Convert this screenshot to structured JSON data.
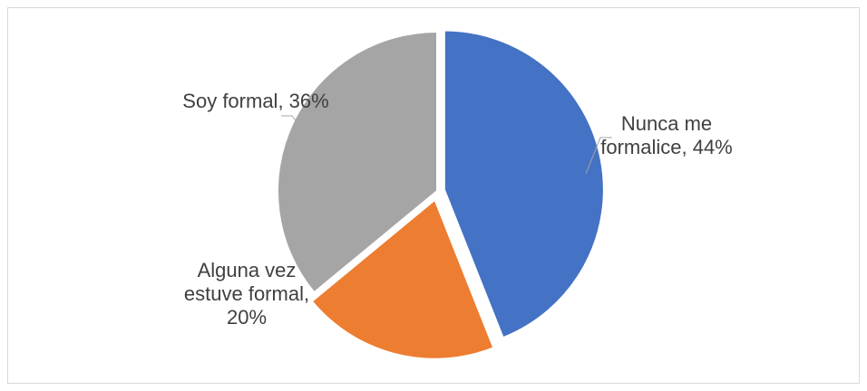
{
  "chart_data": {
    "type": "pie",
    "values": [
      44,
      20,
      36
    ],
    "value_labels": [
      "Nunca me formalice, 44%",
      "Alguna vez estuve formal, 20%",
      "Soy formal, 36%"
    ],
    "colors": [
      "#4472c4",
      "#ed7d31",
      "#a5a5a5"
    ]
  }
}
